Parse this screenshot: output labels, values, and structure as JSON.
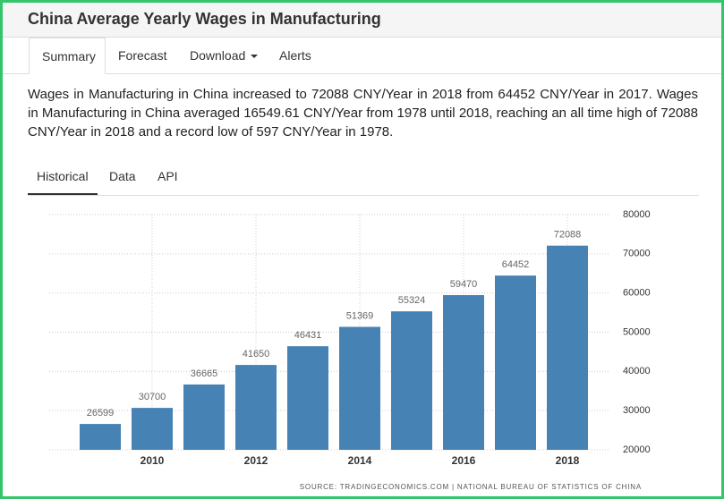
{
  "header": {
    "title": "China Average Yearly Wages in Manufacturing"
  },
  "tabs": [
    "Summary",
    "Forecast",
    "Download",
    "Alerts"
  ],
  "summary": "Wages in Manufacturing in China increased to 72088 CNY/Year in 2018 from 64452 CNY/Year in 2017. Wages in Manufacturing in China averaged 16549.61 CNY/Year from 1978 until 2018, reaching an all time high of 72088 CNY/Year in 2018 and a record low of 597 CNY/Year in 1978.",
  "subtabs": [
    "Historical",
    "Data",
    "API"
  ],
  "chart_data": {
    "type": "bar",
    "categories": [
      null,
      "2010",
      null,
      "2012",
      null,
      "2014",
      null,
      "2016",
      null,
      "2018"
    ],
    "values": [
      26599,
      30700,
      36665,
      41650,
      46431,
      51369,
      55324,
      59470,
      64452,
      72088
    ],
    "color": "#4682b4",
    "ylim": [
      20000,
      80000
    ],
    "yticks": [
      20000,
      30000,
      40000,
      50000,
      60000,
      70000,
      80000
    ],
    "grid": true,
    "source": "SOURCE: TRADINGECONOMICS.COM | NATIONAL BUREAU OF STATISTICS OF CHINA"
  }
}
